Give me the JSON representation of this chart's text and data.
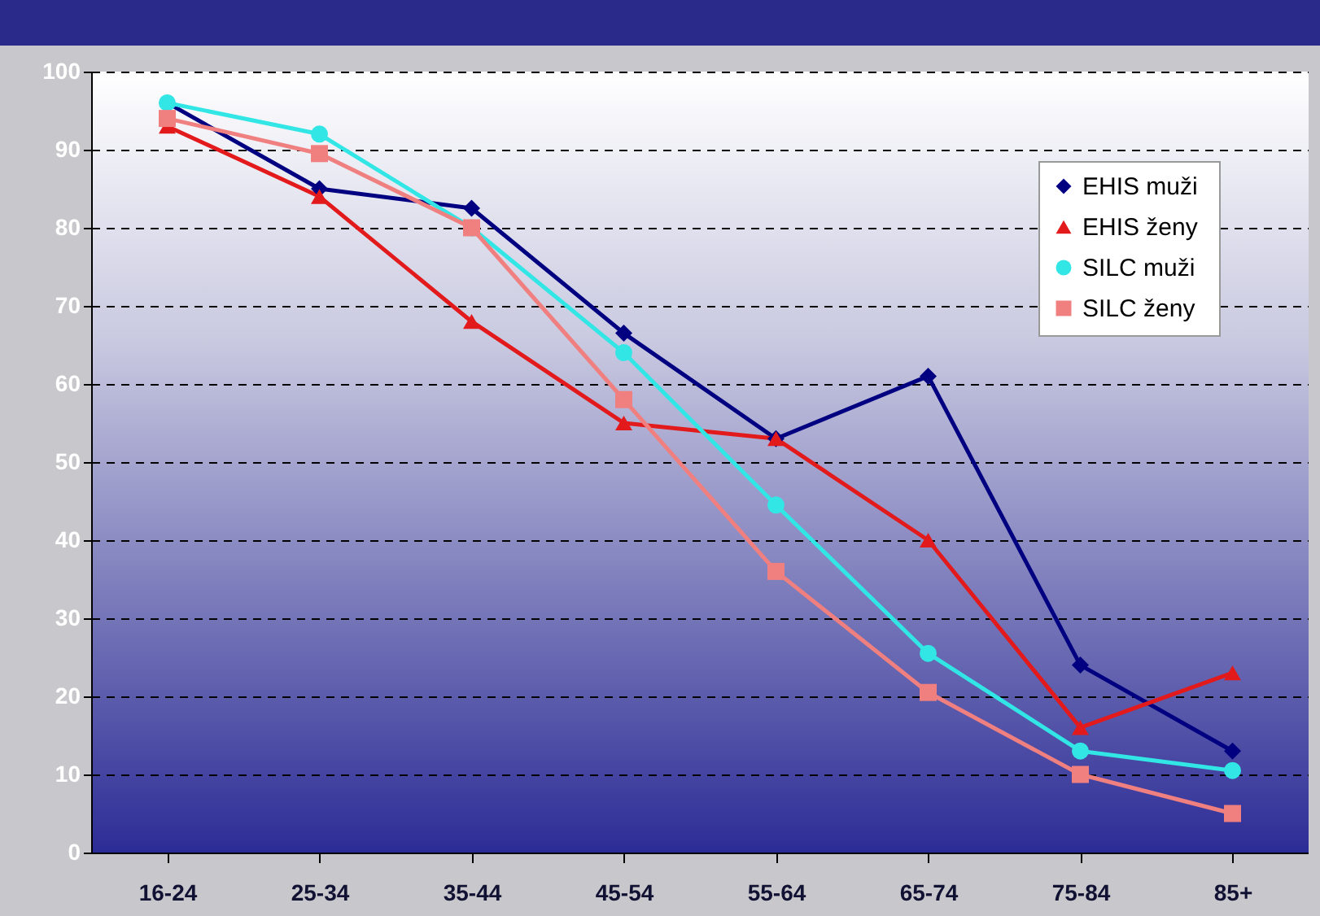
{
  "chart_data": {
    "type": "line",
    "categories": [
      "16-24",
      "25-34",
      "35-44",
      "45-54",
      "55-64",
      "65-74",
      "75-84",
      "85+"
    ],
    "series": [
      {
        "name": "EHIS  muži",
        "color": "#000080",
        "marker": "diamond",
        "values": [
          96,
          85,
          82.5,
          66.5,
          53,
          61,
          24,
          13
        ]
      },
      {
        "name": "EHIS ženy",
        "color": "#e31a1c",
        "marker": "triangle",
        "values": [
          93,
          84,
          68,
          55,
          53,
          40,
          16,
          23
        ]
      },
      {
        "name": "SILC muži",
        "color": "#33e6e6",
        "marker": "circle",
        "values": [
          96,
          92,
          80,
          64,
          44.5,
          25.5,
          13,
          10.5
        ]
      },
      {
        "name": "SILC ženy",
        "color": "#f08080",
        "marker": "square",
        "values": [
          94,
          89.5,
          80,
          58,
          36,
          20.5,
          10,
          5
        ]
      }
    ],
    "ylim": [
      0,
      100
    ],
    "yticks": [
      0,
      10,
      20,
      30,
      40,
      50,
      60,
      70,
      80,
      90,
      100
    ],
    "grid": "y",
    "legend": "top right"
  }
}
